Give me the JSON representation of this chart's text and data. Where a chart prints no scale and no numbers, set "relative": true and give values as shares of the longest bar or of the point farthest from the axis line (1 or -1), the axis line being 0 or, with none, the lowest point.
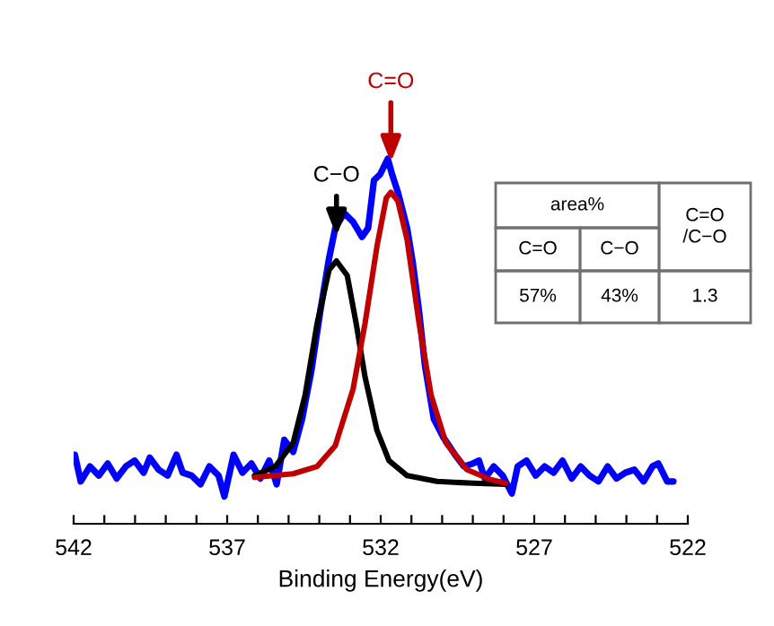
{
  "chart_data": {
    "type": "line",
    "relative": true,
    "xlabel": "Binding Energy(eV)",
    "xlim": [
      542,
      522
    ],
    "xticks": [
      542,
      {
        "value": 541,
        "label": null
      },
      {
        "value": 540,
        "label": null
      },
      {
        "value": 539,
        "label": null
      },
      {
        "value": 538,
        "label": null
      },
      537,
      {
        "value": 536,
        "label": null
      },
      {
        "value": 535,
        "label": null
      },
      {
        "value": 534,
        "label": null
      },
      {
        "value": 533,
        "label": null
      },
      532,
      {
        "value": 531,
        "label": null
      },
      {
        "value": 530,
        "label": null
      },
      {
        "value": 529,
        "label": null
      },
      {
        "value": 528,
        "label": null
      },
      527,
      {
        "value": 526,
        "label": null
      },
      {
        "value": 525,
        "label": null
      },
      {
        "value": 524,
        "label": null
      },
      {
        "value": 523,
        "label": null
      },
      522
    ],
    "grid": false,
    "legend": false,
    "series": [
      {
        "color": "#0000ff",
        "x": [
          541.96,
          541.77,
          541.47,
          541.18,
          540.89,
          540.6,
          540.3,
          540.01,
          539.72,
          539.52,
          539.23,
          538.94,
          538.65,
          538.45,
          538.16,
          537.87,
          537.58,
          537.28,
          537.09,
          536.79,
          536.5,
          536.21,
          535.92,
          535.63,
          535.39,
          535.14,
          534.85,
          534.56,
          534.26,
          533.97,
          533.68,
          533.48,
          533.19,
          532.9,
          532.61,
          532.41,
          532.22,
          532.02,
          531.77,
          531.63,
          531.44,
          531.14,
          530.95,
          530.75,
          530.56,
          530.27,
          529.97,
          529.58,
          529.29,
          529.0,
          528.8,
          528.61,
          528.32,
          528.03,
          527.73,
          527.54,
          527.25,
          526.95,
          526.66,
          526.37,
          526.08,
          525.78,
          525.49,
          525.2,
          524.91,
          524.61,
          524.32,
          524.03,
          523.74,
          523.44,
          523.15,
          522.96,
          522.67,
          522.47
        ],
        "values": [
          0.189,
          0.116,
          0.157,
          0.132,
          0.165,
          0.124,
          0.157,
          0.173,
          0.14,
          0.181,
          0.148,
          0.132,
          0.189,
          0.14,
          0.132,
          0.108,
          0.157,
          0.132,
          0.075,
          0.189,
          0.14,
          0.165,
          0.124,
          0.173,
          0.108,
          0.23,
          0.197,
          0.287,
          0.418,
          0.581,
          0.728,
          0.81,
          0.851,
          0.827,
          0.786,
          0.81,
          0.941,
          0.957,
          1.0,
          0.957,
          0.908,
          0.81,
          0.712,
          0.581,
          0.434,
          0.287,
          0.238,
          0.189,
          0.157,
          0.165,
          0.173,
          0.124,
          0.157,
          0.132,
          0.083,
          0.157,
          0.173,
          0.132,
          0.157,
          0.14,
          0.173,
          0.124,
          0.157,
          0.132,
          0.116,
          0.157,
          0.124,
          0.14,
          0.148,
          0.116,
          0.157,
          0.165,
          0.116,
          0.116
        ]
      },
      {
        "color": "#000000",
        "x": [
          536.11,
          535.43,
          534.85,
          534.46,
          534.07,
          533.68,
          533.44,
          533.09,
          532.8,
          532.51,
          532.12,
          531.73,
          531.14,
          530.17,
          529.0,
          527.93
        ],
        "values": [
          0.132,
          0.157,
          0.222,
          0.353,
          0.549,
          0.696,
          0.72,
          0.68,
          0.549,
          0.402,
          0.255,
          0.173,
          0.132,
          0.116,
          0.111,
          0.108
        ]
      },
      {
        "color": "#c00000",
        "x": [
          536.11,
          534.85,
          534.07,
          533.48,
          532.9,
          532.51,
          532.12,
          531.82,
          531.67,
          531.44,
          531.14,
          530.75,
          530.36,
          529.88,
          529.19,
          528.42,
          527.93
        ],
        "values": [
          0.127,
          0.137,
          0.157,
          0.214,
          0.369,
          0.549,
          0.761,
          0.892,
          0.908,
          0.884,
          0.778,
          0.549,
          0.353,
          0.222,
          0.148,
          0.121,
          0.111
        ]
      }
    ],
    "annotations": [
      "C−O",
      "C=O",
      "area%",
      "C=O",
      "C−O",
      "57%",
      "43%",
      "C=O\n/C−O",
      "1.3"
    ]
  }
}
